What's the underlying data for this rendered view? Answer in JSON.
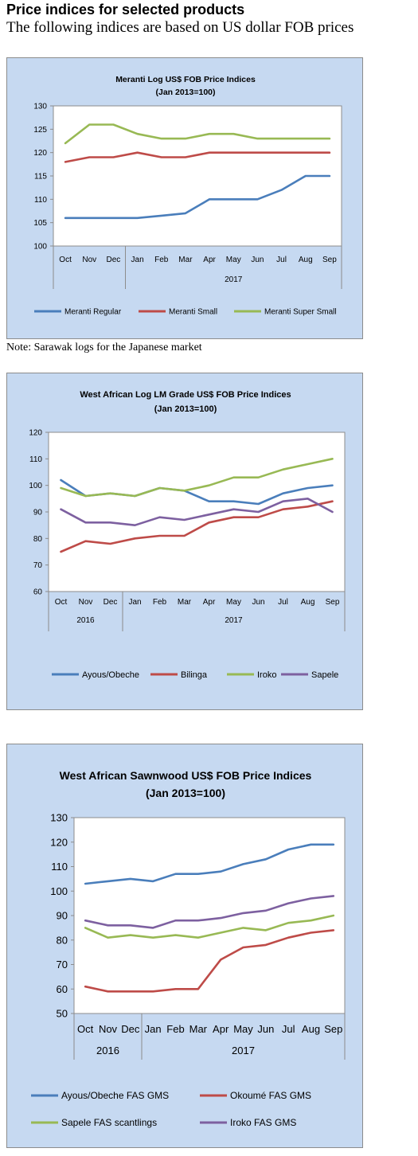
{
  "header": {
    "title": "Price indices for selected products",
    "subtitle": "The following indices are based on US dollar FOB prices"
  },
  "note": "Note: Sarawak logs for the Japanese market",
  "chart_data": [
    {
      "type": "line",
      "title": [
        "Meranti Log US$ FOB Price Indices",
        "(Jan 2013=100)"
      ],
      "categories": [
        "Oct",
        "Nov",
        "Dec",
        "Jan",
        "Feb",
        "Mar",
        "Apr",
        "May",
        "Jun",
        "Jul",
        "Aug",
        "Sep"
      ],
      "groups": [
        {
          "label": "2017",
          "start": 3,
          "end": 11
        }
      ],
      "ylim": [
        100,
        130
      ],
      "yticks": [
        100,
        105,
        110,
        115,
        120,
        125,
        130
      ],
      "grid": false,
      "legend": "bottom",
      "series": [
        {
          "name": "Meranti Regular",
          "color": "#4a7ebb",
          "values": [
            106,
            106,
            106,
            106,
            106.5,
            107,
            110,
            110,
            110,
            112,
            115,
            115
          ]
        },
        {
          "name": "Meranti Small",
          "color": "#be4b48",
          "values": [
            118,
            119,
            119,
            120,
            119,
            119,
            120,
            120,
            120,
            120,
            120,
            120
          ]
        },
        {
          "name": "Meranti Super Small",
          "color": "#98b954",
          "values": [
            122,
            126,
            126,
            124,
            123,
            123,
            124,
            124,
            123,
            123,
            123,
            123
          ]
        }
      ]
    },
    {
      "type": "line",
      "title": [
        "West African Log LM Grade US$ FOB Price Indices",
        "(Jan 2013=100)"
      ],
      "categories": [
        "Oct",
        "Nov",
        "Dec",
        "Jan",
        "Feb",
        "Mar",
        "Apr",
        "May",
        "Jun",
        "Jul",
        "Aug",
        "Sep"
      ],
      "groups": [
        {
          "label": "2016",
          "start": 0,
          "end": 2
        },
        {
          "label": "2017",
          "start": 3,
          "end": 11
        }
      ],
      "ylim": [
        60,
        120
      ],
      "yticks": [
        60,
        70,
        80,
        90,
        100,
        110,
        120
      ],
      "grid": false,
      "legend": "bottom",
      "series": [
        {
          "name": "Ayous/Obeche",
          "color": "#4a7ebb",
          "values": [
            102,
            96,
            97,
            96,
            99,
            98,
            94,
            94,
            93,
            97,
            99,
            100
          ]
        },
        {
          "name": "Bilinga",
          "color": "#be4b48",
          "values": [
            75,
            79,
            78,
            80,
            81,
            81,
            86,
            88,
            88,
            91,
            92,
            94
          ]
        },
        {
          "name": "Iroko",
          "color": "#98b954",
          "values": [
            99,
            96,
            97,
            96,
            99,
            98,
            100,
            103,
            103,
            106,
            108,
            110
          ]
        },
        {
          "name": "Sapele",
          "color": "#7d60a0",
          "values": [
            91,
            86,
            86,
            85,
            88,
            87,
            89,
            91,
            90,
            94,
            95,
            90
          ]
        }
      ]
    },
    {
      "type": "line",
      "title": [
        "West African Sawnwood US$ FOB Price Indices",
        "(Jan 2013=100)"
      ],
      "categories": [
        "Oct",
        "Nov",
        "Dec",
        "Jan",
        "Feb",
        "Mar",
        "Apr",
        "May",
        "Jun",
        "Jul",
        "Aug",
        "Sep"
      ],
      "groups": [
        {
          "label": "2016",
          "start": 0,
          "end": 2
        },
        {
          "label": "2017",
          "start": 3,
          "end": 11
        }
      ],
      "ylim": [
        50,
        130
      ],
      "yticks": [
        50,
        60,
        70,
        80,
        90,
        100,
        110,
        120,
        130
      ],
      "grid": false,
      "legend": "bottom",
      "series": [
        {
          "name": "Ayous/Obeche  FAS GMS",
          "color": "#4a7ebb",
          "values": [
            103,
            104,
            105,
            104,
            107,
            107,
            108,
            111,
            113,
            117,
            119,
            119
          ]
        },
        {
          "name": "Okoumé  FAS GMS",
          "color": "#be4b48",
          "values": [
            61,
            59,
            59,
            59,
            60,
            60,
            72,
            77,
            78,
            81,
            83,
            84
          ]
        },
        {
          "name": "Sapele FAS scantlings",
          "color": "#98b954",
          "values": [
            85,
            81,
            82,
            81,
            82,
            81,
            83,
            85,
            84,
            87,
            88,
            90
          ]
        },
        {
          "name": "Iroko FAS GMS",
          "color": "#7d60a0",
          "values": [
            88,
            86,
            86,
            85,
            88,
            88,
            89,
            91,
            92,
            95,
            97,
            98
          ]
        }
      ]
    }
  ]
}
